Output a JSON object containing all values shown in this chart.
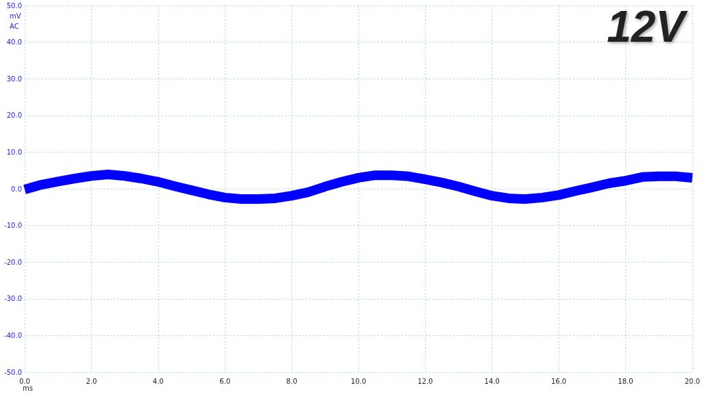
{
  "chart_data": {
    "type": "line",
    "title": "12V",
    "xlabel": "ms",
    "ylabel": "mV\nAC",
    "x": [
      0,
      0.5,
      1,
      1.5,
      2,
      2.5,
      3,
      3.5,
      4,
      4.5,
      5,
      5.5,
      6,
      6.5,
      7,
      7.5,
      8,
      8.5,
      9,
      9.5,
      10,
      10.5,
      11,
      11.5,
      12,
      12.5,
      13,
      13.5,
      14,
      14.5,
      15,
      15.5,
      16,
      16.5,
      17,
      17.5,
      18,
      18.5,
      19,
      19.5,
      20
    ],
    "series": [
      {
        "color": "#0000ff",
        "values": [
          -0.2,
          1.1,
          2,
          2.8,
          3.5,
          3.9,
          3.5,
          2.8,
          1.9,
          0.7,
          -0.4,
          -1.5,
          -2.4,
          -2.8,
          -2.8,
          -2.6,
          -1.9,
          -0.9,
          0.6,
          1.9,
          3,
          3.7,
          3.7,
          3.4,
          2.6,
          1.7,
          0.6,
          -0.7,
          -1.9,
          -2.6,
          -2.8,
          -2.4,
          -1.7,
          -0.6,
          0.4,
          1.5,
          2.2,
          3.2,
          3.4,
          3.4,
          3
        ]
      }
    ],
    "xlim": [
      0,
      20
    ],
    "xticks": [
      {
        "value": 0,
        "label": "0.0"
      },
      {
        "value": 2,
        "label": "2.0"
      },
      {
        "value": 4,
        "label": "4.0"
      },
      {
        "value": 6,
        "label": "6.0"
      },
      {
        "value": 8,
        "label": "8.0"
      },
      {
        "value": 10,
        "label": "10.0"
      },
      {
        "value": 12,
        "label": "12.0"
      },
      {
        "value": 14,
        "label": "14.0"
      },
      {
        "value": 16,
        "label": "16.0"
      },
      {
        "value": 18,
        "label": "18.0"
      },
      {
        "value": 20,
        "label": "20.0"
      }
    ],
    "ylim": [
      -50,
      50
    ],
    "yticks": [
      {
        "value": -50,
        "label": "-50.0"
      },
      {
        "value": -40,
        "label": "-40.0"
      },
      {
        "value": -30,
        "label": "-30.0"
      },
      {
        "value": -20,
        "label": "-20.0"
      },
      {
        "value": -10,
        "label": "-10.0"
      },
      {
        "value": 0,
        "label": "0.0"
      },
      {
        "value": 10,
        "label": "10.0"
      },
      {
        "value": 20,
        "label": "20.0"
      },
      {
        "value": 30,
        "label": "30.0"
      },
      {
        "value": 40,
        "label": "40.0"
      },
      {
        "value": 50,
        "label": "50.0"
      }
    ],
    "grid": true
  }
}
